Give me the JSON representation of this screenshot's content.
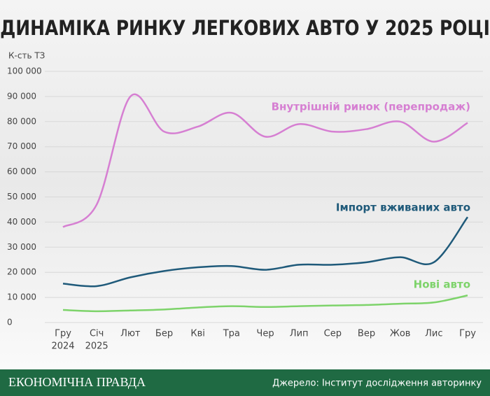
{
  "chart_data": {
    "type": "line",
    "title": "ДИНАМІКА РИНКУ ЛЕГКОВИХ АВТО У 2025 РОЦІ",
    "y_label": "К-сть ТЗ",
    "categories": [
      "Гру",
      "Січ",
      "Лют",
      "Бер",
      "Кві",
      "Тра",
      "Чер",
      "Лип",
      "Сер",
      "Вер",
      "Жов",
      "Лис",
      "Гру"
    ],
    "category_sublabels": [
      "2024",
      "2025",
      null,
      null,
      null,
      null,
      null,
      null,
      null,
      null,
      null,
      null,
      null
    ],
    "series": [
      {
        "name": "Внутрішній ринок (перепродаж)",
        "color": "#d67fd2",
        "values": [
          38000,
          47000,
          90000,
          76000,
          78000,
          83500,
          74000,
          79000,
          76000,
          77000,
          80000,
          72000,
          79500
        ]
      },
      {
        "name": "Імпорт вживаних авто",
        "color": "#1f5a7a",
        "values": [
          15500,
          14500,
          18000,
          20500,
          22000,
          22500,
          21000,
          23000,
          23000,
          24000,
          26000,
          24000,
          42000
        ]
      },
      {
        "name": "Нові авто",
        "color": "#7dd36a",
        "values": [
          5000,
          4500,
          4800,
          5200,
          6000,
          6500,
          6200,
          6500,
          6800,
          7000,
          7500,
          8000,
          10800
        ]
      }
    ],
    "ylim": [
      0,
      100000
    ],
    "yticks": [
      {
        "value": 0,
        "label": "0"
      },
      {
        "value": 10000,
        "label": "10 000"
      },
      {
        "value": 20000,
        "label": "20 000"
      },
      {
        "value": 30000,
        "label": "30 000"
      },
      {
        "value": 40000,
        "label": "40 000"
      },
      {
        "value": 50000,
        "label": "50 000"
      },
      {
        "value": 60000,
        "label": "60 000"
      },
      {
        "value": 70000,
        "label": "70 000"
      },
      {
        "value": 80000,
        "label": "80 000"
      },
      {
        "value": 90000,
        "label": "90 000"
      },
      {
        "value": 100000,
        "label": "100 000"
      }
    ],
    "grid": true
  },
  "footer": {
    "brand": "ЕКОНОМІЧНА ПРАВДА",
    "source": "Джерело: Інститут дослідження авторинку"
  }
}
